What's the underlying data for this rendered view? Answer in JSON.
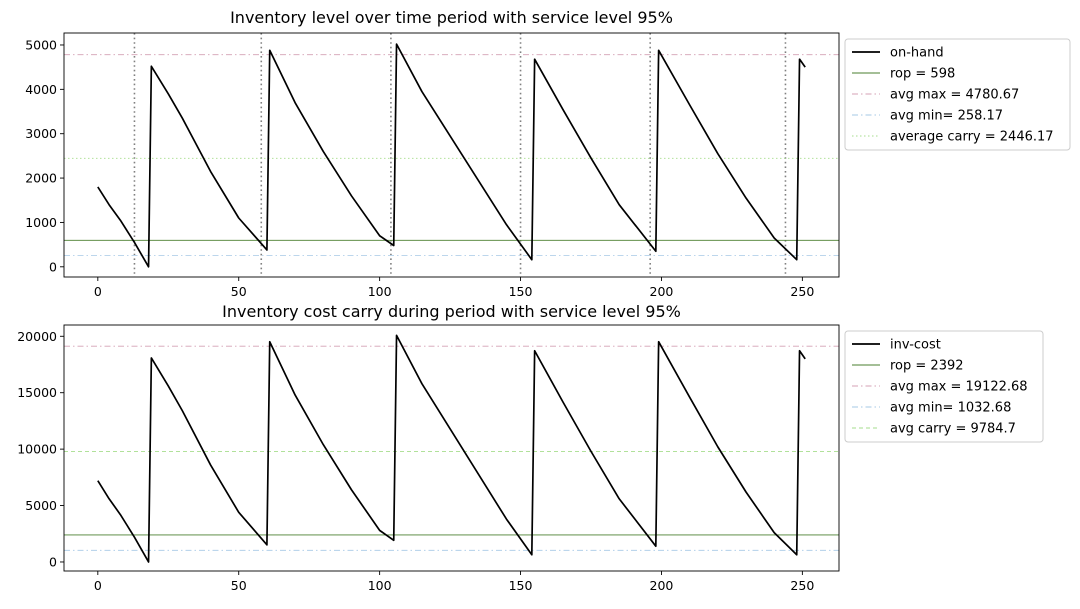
{
  "chart_data": [
    {
      "type": "line",
      "title": "Inventory level over time period with service level 95%",
      "xlim": [
        -12,
        263
      ],
      "ylim": [
        -230,
        5270
      ],
      "xticks": [
        0,
        50,
        100,
        150,
        200,
        250
      ],
      "yticks": [
        0,
        1000,
        2000,
        3000,
        4000,
        5000
      ],
      "legend_position": "outside-right-top",
      "series": [
        {
          "name": "on-hand",
          "color": "#000000",
          "style": "solid",
          "points": [
            [
              0,
              1800
            ],
            [
              4,
              1400
            ],
            [
              8,
              1050
            ],
            [
              13,
              550
            ],
            [
              18,
              0
            ],
            [
              19,
              4520
            ],
            [
              25,
              3900
            ],
            [
              30,
              3350
            ],
            [
              40,
              2150
            ],
            [
              50,
              1100
            ],
            [
              60,
              380
            ],
            [
              61,
              4880
            ],
            [
              70,
              3700
            ],
            [
              80,
              2600
            ],
            [
              90,
              1600
            ],
            [
              100,
              700
            ],
            [
              105,
              480
            ],
            [
              106,
              5020
            ],
            [
              115,
              3950
            ],
            [
              125,
              2950
            ],
            [
              135,
              1950
            ],
            [
              145,
              950
            ],
            [
              154,
              160
            ],
            [
              155,
              4680
            ],
            [
              165,
              3550
            ],
            [
              175,
              2450
            ],
            [
              185,
              1400
            ],
            [
              198,
              350
            ],
            [
              199,
              4880
            ],
            [
              210,
              3650
            ],
            [
              220,
              2550
            ],
            [
              230,
              1550
            ],
            [
              240,
              650
            ],
            [
              248,
              160
            ],
            [
              249,
              4680
            ],
            [
              251,
              4500
            ]
          ]
        }
      ],
      "hlines": [
        {
          "name": "rop = 598",
          "y": 598,
          "color": "#4a7f2f",
          "style": "solid"
        },
        {
          "name": "avg max = 4780.67",
          "y": 4780.67,
          "color": "#d4a0b4",
          "style": "dashdot"
        },
        {
          "name": "avg min= 258.17",
          "y": 258.17,
          "color": "#a6c8e6",
          "style": "dashdot"
        },
        {
          "name": "average carry = 2446.17",
          "y": 2446.17,
          "color": "#a6dd8c",
          "style": "dotted"
        }
      ],
      "vlines": [
        {
          "x": 13,
          "color": "#808080",
          "style": "dotted"
        },
        {
          "x": 58,
          "color": "#808080",
          "style": "dotted"
        },
        {
          "x": 104,
          "color": "#808080",
          "style": "dotted"
        },
        {
          "x": 150,
          "color": "#808080",
          "style": "dotted"
        },
        {
          "x": 196,
          "color": "#808080",
          "style": "dotted"
        },
        {
          "x": 244,
          "color": "#808080",
          "style": "dotted"
        }
      ]
    },
    {
      "type": "line",
      "title": "Inventory cost carry during period with service level 95%",
      "xlim": [
        -12,
        263
      ],
      "ylim": [
        -800,
        21000
      ],
      "xticks": [
        0,
        50,
        100,
        150,
        200,
        250
      ],
      "yticks": [
        0,
        5000,
        10000,
        15000,
        20000
      ],
      "legend_position": "outside-right-top",
      "series": [
        {
          "name": "inv-cost",
          "color": "#000000",
          "style": "solid",
          "points": [
            [
              0,
              7200
            ],
            [
              4,
              5600
            ],
            [
              8,
              4200
            ],
            [
              13,
              2200
            ],
            [
              18,
              0
            ],
            [
              19,
              18080
            ],
            [
              25,
              15600
            ],
            [
              30,
              13400
            ],
            [
              40,
              8600
            ],
            [
              50,
              4400
            ],
            [
              60,
              1520
            ],
            [
              61,
              19520
            ],
            [
              70,
              14800
            ],
            [
              80,
              10400
            ],
            [
              90,
              6400
            ],
            [
              100,
              2800
            ],
            [
              105,
              1920
            ],
            [
              106,
              20080
            ],
            [
              115,
              15800
            ],
            [
              125,
              11800
            ],
            [
              135,
              7800
            ],
            [
              145,
              3800
            ],
            [
              154,
              640
            ],
            [
              155,
              18720
            ],
            [
              165,
              14200
            ],
            [
              175,
              9800
            ],
            [
              185,
              5600
            ],
            [
              198,
              1400
            ],
            [
              199,
              19520
            ],
            [
              210,
              14600
            ],
            [
              220,
              10200
            ],
            [
              230,
              6200
            ],
            [
              240,
              2600
            ],
            [
              248,
              640
            ],
            [
              249,
              18720
            ],
            [
              251,
              18000
            ]
          ]
        }
      ],
      "hlines": [
        {
          "name": "rop = 2392",
          "y": 2392,
          "color": "#4a7f2f",
          "style": "solid"
        },
        {
          "name": "avg max = 19122.68",
          "y": 19122.68,
          "color": "#d4a0b4",
          "style": "dashdot"
        },
        {
          "name": "avg min= 1032.68",
          "y": 1032.68,
          "color": "#a6c8e6",
          "style": "dashdot"
        },
        {
          "name": "avg carry = 9784.7",
          "y": 9784.7,
          "color": "#a6dd8c",
          "style": "dashed"
        }
      ],
      "vlines": []
    }
  ]
}
